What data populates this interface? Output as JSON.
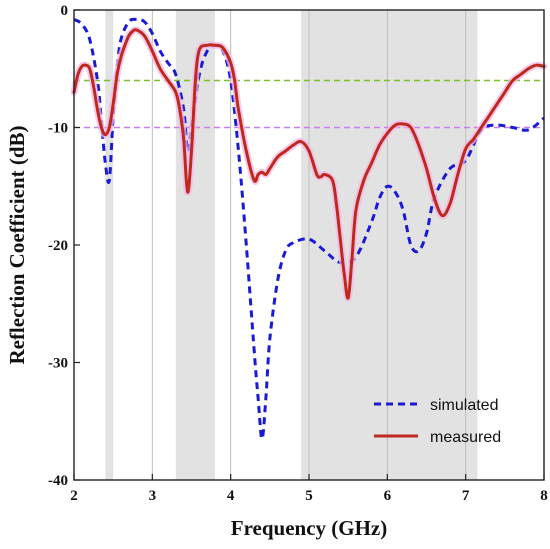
{
  "chart_data": {
    "type": "line",
    "xlabel": "Frequency (GHz)",
    "ylabel": "Reflection Coefficient (dB)",
    "xlim": [
      2,
      8
    ],
    "ylim": [
      -40,
      0
    ],
    "xticks": [
      2,
      3,
      4,
      5,
      6,
      7,
      8
    ],
    "yticks": [
      0,
      -10,
      -20,
      -30,
      -40
    ],
    "grid": "vertical",
    "legend_position": "bottom-right",
    "shaded_bands": [
      [
        2.4,
        2.5
      ],
      [
        3.3,
        3.8
      ],
      [
        4.9,
        7.15
      ]
    ],
    "reference_lines": [
      {
        "y": -6,
        "color": "#7bbf2a",
        "style": "dashed"
      },
      {
        "y": -10,
        "color": "#c87ee8",
        "style": "dashed"
      }
    ],
    "series": [
      {
        "name": "simulated",
        "color": "#1a1ad6",
        "style": "dashed",
        "x": [
          2.0,
          2.1,
          2.2,
          2.3,
          2.35,
          2.4,
          2.45,
          2.5,
          2.55,
          2.6,
          2.7,
          2.8,
          2.9,
          3.0,
          3.1,
          3.2,
          3.3,
          3.4,
          3.45,
          3.5,
          3.6,
          3.7,
          3.8,
          3.9,
          4.0,
          4.1,
          4.2,
          4.3,
          4.35,
          4.4,
          4.45,
          4.5,
          4.6,
          4.7,
          4.8,
          5.0,
          5.2,
          5.4,
          5.6,
          5.8,
          5.9,
          6.0,
          6.1,
          6.2,
          6.3,
          6.4,
          6.5,
          6.6,
          6.8,
          7.0,
          7.2,
          7.4,
          7.6,
          7.8,
          8.0
        ],
        "y": [
          -0.8,
          -1.2,
          -2.5,
          -6.0,
          -9.5,
          -13.0,
          -14.5,
          -9.0,
          -5.0,
          -2.5,
          -1.0,
          -0.8,
          -1.0,
          -2.0,
          -3.5,
          -4.5,
          -5.5,
          -8.5,
          -12.0,
          -10.0,
          -5.5,
          -3.5,
          -3.0,
          -3.5,
          -6.0,
          -12.0,
          -20.0,
          -29.0,
          -33.0,
          -36.5,
          -33.0,
          -28.0,
          -23.0,
          -20.5,
          -19.8,
          -19.5,
          -20.5,
          -21.5,
          -21.0,
          -18.0,
          -16.0,
          -15.0,
          -15.5,
          -17.0,
          -20.0,
          -20.5,
          -19.0,
          -16.0,
          -13.5,
          -12.8,
          -10.2,
          -9.8,
          -10.0,
          -10.2,
          -9.2
        ]
      },
      {
        "name": "measured",
        "color": "#c0281e",
        "style": "solid",
        "x": [
          2.0,
          2.05,
          2.1,
          2.15,
          2.2,
          2.25,
          2.3,
          2.35,
          2.4,
          2.45,
          2.5,
          2.55,
          2.6,
          2.65,
          2.7,
          2.75,
          2.8,
          2.9,
          3.0,
          3.1,
          3.2,
          3.3,
          3.35,
          3.4,
          3.45,
          3.5,
          3.55,
          3.6,
          3.7,
          3.8,
          3.9,
          4.0,
          4.05,
          4.1,
          4.2,
          4.3,
          4.35,
          4.4,
          4.45,
          4.5,
          4.6,
          4.7,
          4.8,
          4.9,
          5.0,
          5.1,
          5.15,
          5.2,
          5.3,
          5.35,
          5.4,
          5.45,
          5.5,
          5.55,
          5.6,
          5.7,
          5.8,
          5.9,
          6.0,
          6.1,
          6.2,
          6.3,
          6.4,
          6.5,
          6.6,
          6.7,
          6.8,
          6.9,
          7.0,
          7.1,
          7.2,
          7.3,
          7.4,
          7.5,
          7.6,
          7.7,
          7.8,
          7.9,
          8.0
        ],
        "y": [
          -7.0,
          -5.5,
          -4.8,
          -4.7,
          -5.0,
          -6.5,
          -8.5,
          -10.0,
          -10.6,
          -10.0,
          -8.0,
          -5.5,
          -4.0,
          -3.0,
          -2.2,
          -1.8,
          -1.7,
          -2.2,
          -3.5,
          -5.0,
          -6.0,
          -7.0,
          -8.5,
          -11.0,
          -15.5,
          -12.0,
          -6.0,
          -3.4,
          -3.0,
          -3.0,
          -3.2,
          -4.5,
          -6.0,
          -8.5,
          -12.0,
          -14.5,
          -14.0,
          -13.8,
          -14.0,
          -13.5,
          -12.5,
          -12.0,
          -11.5,
          -11.2,
          -12.0,
          -14.0,
          -14.2,
          -14.0,
          -14.5,
          -16.5,
          -19.5,
          -22.5,
          -24.5,
          -21.0,
          -17.0,
          -14.5,
          -13.0,
          -11.5,
          -10.5,
          -9.8,
          -9.7,
          -10.0,
          -11.5,
          -13.5,
          -16.0,
          -17.5,
          -16.5,
          -14.0,
          -11.8,
          -11.0,
          -10.0,
          -9.0,
          -8.0,
          -7.0,
          -6.0,
          -5.5,
          -5.0,
          -4.7,
          -4.8
        ]
      }
    ]
  }
}
